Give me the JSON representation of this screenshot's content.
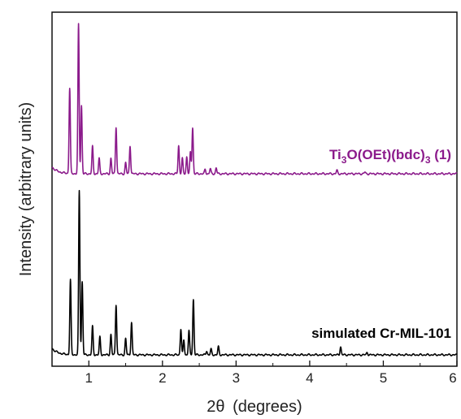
{
  "chart_data": {
    "type": "line",
    "xlabel_symbol": "2θ",
    "xlabel_unit": "(degrees)",
    "ylabel": "Intensity (arbitrary units)",
    "xlim": [
      0.5,
      6
    ],
    "x_ticks": [
      "1",
      "2",
      "3",
      "4",
      "5",
      "6"
    ],
    "y_ticks_shown": false,
    "grid": false,
    "legend": "inline labels at right of each trace",
    "series": [
      {
        "name": "Ti3O(OEt)(bdc)3 (1)",
        "label_parts": [
          "Ti",
          "3",
          "O(OEt)(bdc)",
          "3",
          " (1)"
        ],
        "color": "#8B1A8B",
        "baseline": 0.0,
        "peaks": [
          [
            0.74,
            1.0
          ],
          [
            0.86,
            1.75
          ],
          [
            0.9,
            0.8
          ],
          [
            1.05,
            0.32
          ],
          [
            1.14,
            0.18
          ],
          [
            1.3,
            0.18
          ],
          [
            1.37,
            0.55
          ],
          [
            1.5,
            0.13
          ],
          [
            1.56,
            0.33
          ],
          [
            2.22,
            0.33
          ],
          [
            2.27,
            0.18
          ],
          [
            2.33,
            0.2
          ],
          [
            2.38,
            0.25
          ],
          [
            2.41,
            0.54
          ],
          [
            2.58,
            0.05
          ],
          [
            2.65,
            0.06
          ],
          [
            2.73,
            0.07
          ],
          [
            4.37,
            0.04
          ],
          [
            4.75,
            0.02
          ]
        ]
      },
      {
        "name": "simulated Cr-MIL-101",
        "label_parts": [
          "simulated Cr-MIL-101"
        ],
        "color": "#000000",
        "baseline": 0.0,
        "peaks": [
          [
            0.75,
            0.92
          ],
          [
            0.87,
            2.02
          ],
          [
            0.91,
            0.9
          ],
          [
            1.05,
            0.35
          ],
          [
            1.15,
            0.22
          ],
          [
            1.3,
            0.25
          ],
          [
            1.37,
            0.62
          ],
          [
            1.5,
            0.2
          ],
          [
            1.58,
            0.4
          ],
          [
            2.25,
            0.32
          ],
          [
            2.29,
            0.18
          ],
          [
            2.36,
            0.3
          ],
          [
            2.42,
            0.68
          ],
          [
            2.6,
            0.05
          ],
          [
            2.66,
            0.07
          ],
          [
            2.76,
            0.1
          ],
          [
            4.42,
            0.1
          ],
          [
            4.78,
            0.03
          ]
        ]
      }
    ]
  }
}
